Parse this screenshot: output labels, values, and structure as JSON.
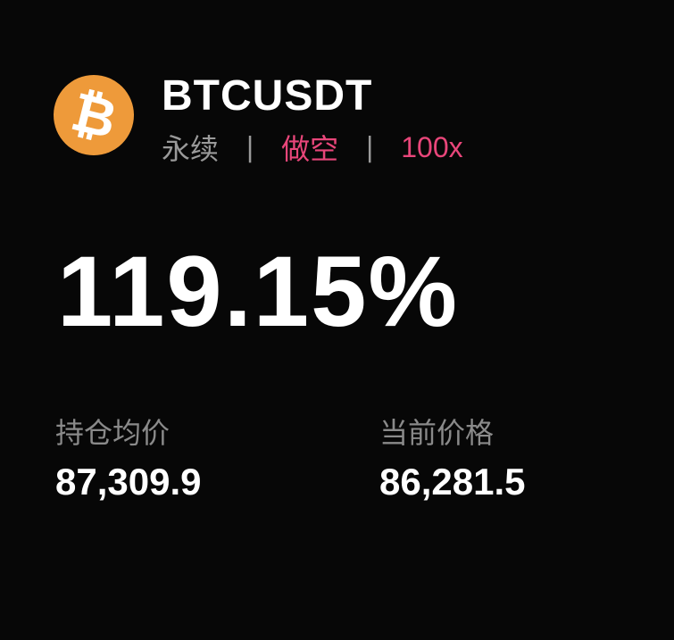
{
  "header": {
    "symbol": "BTCUSDT",
    "logo_icon": "bitcoin-icon",
    "logo_glyph": "₿",
    "logo_color": "#ee9a3a",
    "contract_type": "永续",
    "separator": "|",
    "direction": "做空",
    "leverage": "100x",
    "accent_color": "#e8467a"
  },
  "pnl": {
    "percent": "119.15%"
  },
  "stats": [
    {
      "label": "持仓均价",
      "value": "87,309.9"
    },
    {
      "label": "当前价格",
      "value": "86,281.5"
    }
  ]
}
